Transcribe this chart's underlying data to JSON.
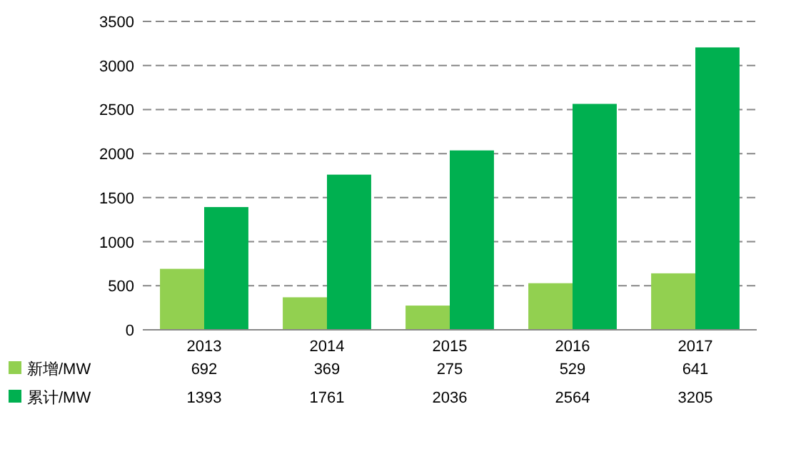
{
  "chart_data": {
    "type": "bar",
    "categories": [
      "2013",
      "2014",
      "2015",
      "2016",
      "2017"
    ],
    "series": [
      {
        "name": "新增/MW",
        "color": "#92d050",
        "values": [
          692,
          369,
          275,
          529,
          641
        ]
      },
      {
        "name": "累计/MW",
        "color": "#00b050",
        "values": [
          1393,
          1761,
          2036,
          2564,
          3205
        ]
      }
    ],
    "ylim": [
      0,
      3500
    ],
    "yticks": [
      0,
      500,
      1000,
      1500,
      2000,
      2500,
      3000,
      3500
    ],
    "grid": "y",
    "legend": "bottom",
    "data_labels": true
  }
}
